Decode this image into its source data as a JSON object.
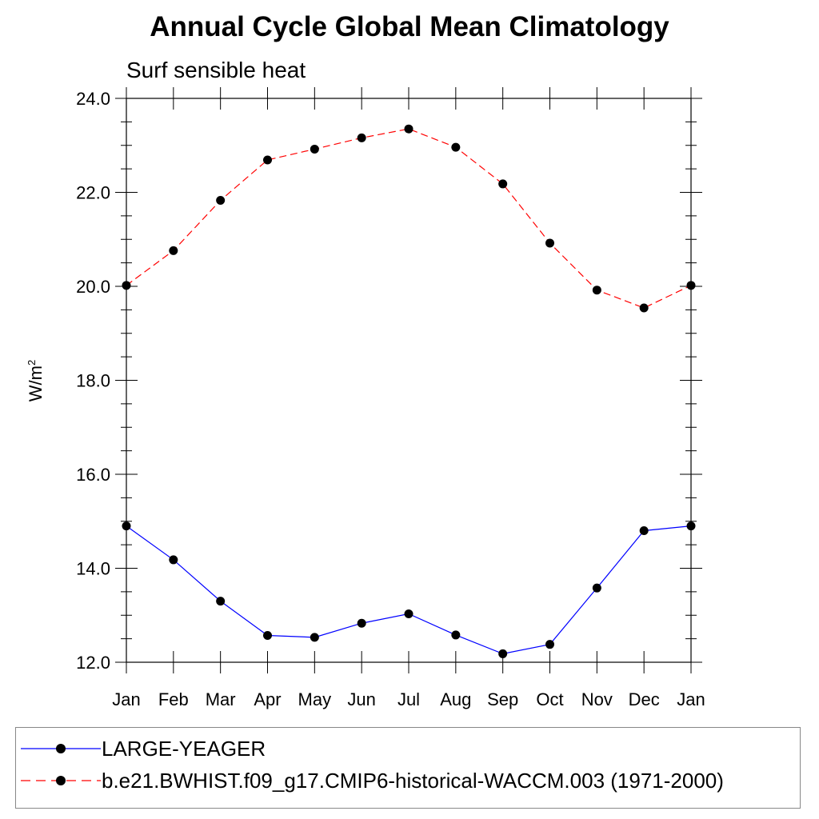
{
  "chart_data": {
    "type": "line",
    "title": "Annual Cycle Global Mean Climatology",
    "subtitle": "Surf sensible heat",
    "ylabel": "W/m",
    "ylabel_sup": "2",
    "categories": [
      "Jan",
      "Feb",
      "Mar",
      "Apr",
      "May",
      "Jun",
      "Jul",
      "Aug",
      "Sep",
      "Oct",
      "Nov",
      "Dec",
      "Jan"
    ],
    "ylim": [
      12.0,
      24.0
    ],
    "yticks": [
      "12.0",
      "14.0",
      "16.0",
      "18.0",
      "20.0",
      "22.0",
      "24.0"
    ],
    "series": [
      {
        "name": "LARGE-YEAGER",
        "color": "#0000ff",
        "dash": "solid",
        "values": [
          14.9,
          14.18,
          13.3,
          12.57,
          12.53,
          12.83,
          13.03,
          12.58,
          12.18,
          12.38,
          13.58,
          14.8,
          14.9
        ]
      },
      {
        "name": "b.e21.BWHIST.f09_g17.CMIP6-historical-WACCM.003 (1971-2000)",
        "color": "#ff0000",
        "dash": "dashed",
        "values": [
          20.02,
          20.76,
          21.83,
          22.69,
          22.92,
          23.16,
          23.35,
          22.96,
          22.18,
          20.92,
          19.92,
          19.54,
          20.02
        ]
      }
    ],
    "marker": "filled-circle",
    "legend_position": "bottom"
  }
}
